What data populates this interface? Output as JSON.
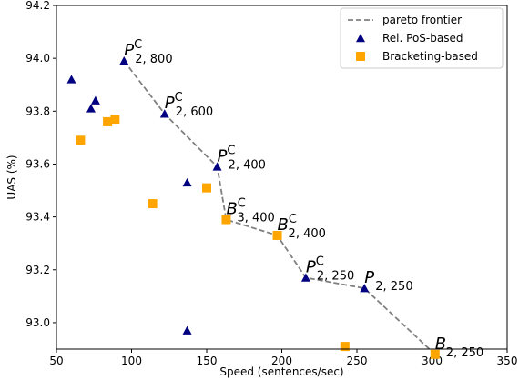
{
  "chart_data": {
    "type": "scatter",
    "xlabel": "Speed (sentences/sec)",
    "ylabel": "UAS (%)",
    "xlim": [
      50,
      350
    ],
    "ylim": [
      92.9,
      94.2
    ],
    "xticks": [
      "50",
      "100",
      "150",
      "200",
      "250",
      "300",
      "350"
    ],
    "yticks": [
      "93.0",
      "93.2",
      "93.4",
      "93.6",
      "93.8",
      "94.0",
      "94.2"
    ],
    "grid": false,
    "legend_position": "top-right",
    "series": [
      {
        "name": "pareto frontier",
        "kind": "line",
        "color": "#808080",
        "points": [
          [
            95,
            93.99
          ],
          [
            122,
            93.79
          ],
          [
            157,
            93.59
          ],
          [
            163,
            93.39
          ],
          [
            197,
            93.33
          ],
          [
            216,
            93.17
          ],
          [
            255,
            93.13
          ],
          [
            302,
            92.88
          ]
        ]
      },
      {
        "name": "Rel. PoS-based",
        "kind": "marker",
        "marker": "triangle",
        "color": "#000080",
        "points": [
          [
            60,
            93.92
          ],
          [
            73,
            93.81
          ],
          [
            76,
            93.84
          ],
          [
            95,
            93.99
          ],
          [
            122,
            93.79
          ],
          [
            137,
            93.53
          ],
          [
            157,
            93.59
          ],
          [
            216,
            93.17
          ],
          [
            255,
            93.13
          ],
          [
            137,
            92.97
          ]
        ]
      },
      {
        "name": "Bracketing-based",
        "kind": "marker",
        "marker": "square",
        "color": "#FFA500",
        "points": [
          [
            66,
            93.69
          ],
          [
            84,
            93.76
          ],
          [
            89,
            93.77
          ],
          [
            114,
            93.45
          ],
          [
            150,
            93.51
          ],
          [
            163,
            93.39
          ],
          [
            197,
            93.33
          ],
          [
            242,
            92.91
          ],
          [
            302,
            92.88
          ]
        ]
      }
    ],
    "annotations": [
      {
        "main": "P",
        "sup": "C",
        "sub": "2, 800",
        "x": 95,
        "y": 93.99
      },
      {
        "main": "P",
        "sup": "C",
        "sub": "2, 600",
        "x": 122,
        "y": 93.79
      },
      {
        "main": "P",
        "sup": "C",
        "sub": "2, 400",
        "x": 157,
        "y": 93.59
      },
      {
        "main": "B",
        "sup": "C",
        "sub": "3, 400",
        "x": 163,
        "y": 93.39
      },
      {
        "main": "B",
        "sup": "C",
        "sub": "2, 400",
        "x": 197,
        "y": 93.33
      },
      {
        "main": "P",
        "sup": "C",
        "sub": "2, 250",
        "x": 216,
        "y": 93.17
      },
      {
        "main": "P",
        "sup": "",
        "sub": "2, 250",
        "x": 255,
        "y": 93.13
      },
      {
        "main": "B",
        "sup": "",
        "sub": "2, 250",
        "x": 302,
        "y": 92.88
      }
    ]
  }
}
